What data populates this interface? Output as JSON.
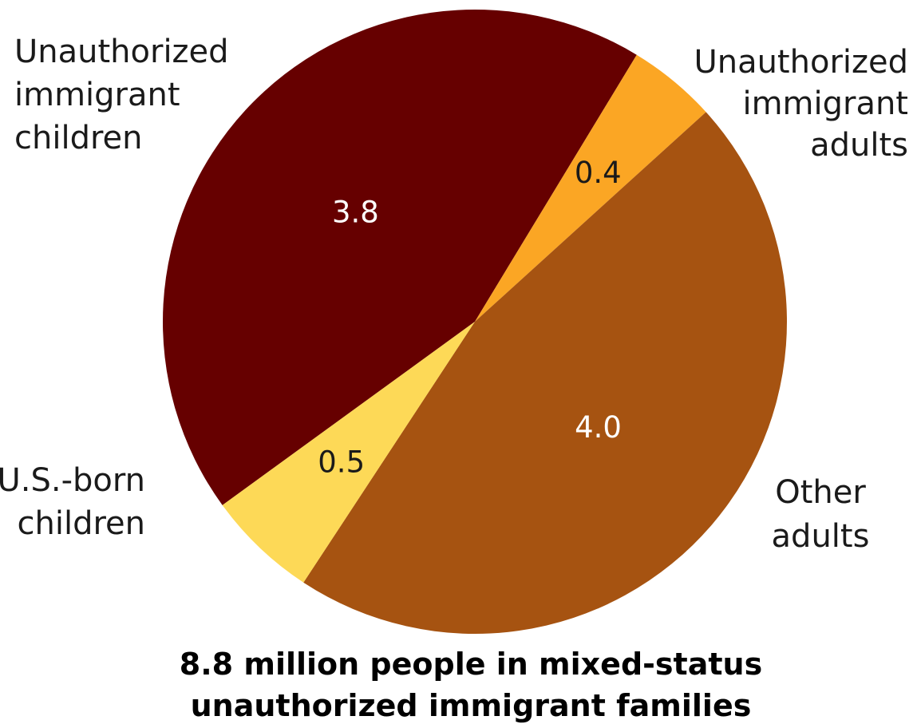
{
  "chart_data": {
    "type": "pie",
    "title": "",
    "caption": [
      "8.8  million people in  mixed-status",
      "unauthorized immigrant families"
    ],
    "slices": [
      {
        "label": [
          "Unauthorized",
          "immigrant",
          "adults"
        ],
        "value": 3.8,
        "value_label": "3.8",
        "color": "#660000",
        "value_label_color": "#ffffff"
      },
      {
        "label": [
          "Other",
          "adults"
        ],
        "value": 0.4,
        "value_label": "0.4",
        "color": "#fba624",
        "value_label_color": "#1a1a1a"
      },
      {
        "label": [
          "U.S.-born",
          "children"
        ],
        "value": 4.0,
        "value_label": "4.0",
        "color": "#a65311",
        "value_label_color": "#ffffff"
      },
      {
        "label": [
          "Unauthorized",
          "immigrant",
          "children"
        ],
        "value": 0.5,
        "value_label": "0.5",
        "color": "#fdd957",
        "value_label_color": "#1a1a1a"
      }
    ],
    "start_angle": "upper-left, clockwise",
    "legend": "none (direct labels)",
    "grid": false
  }
}
